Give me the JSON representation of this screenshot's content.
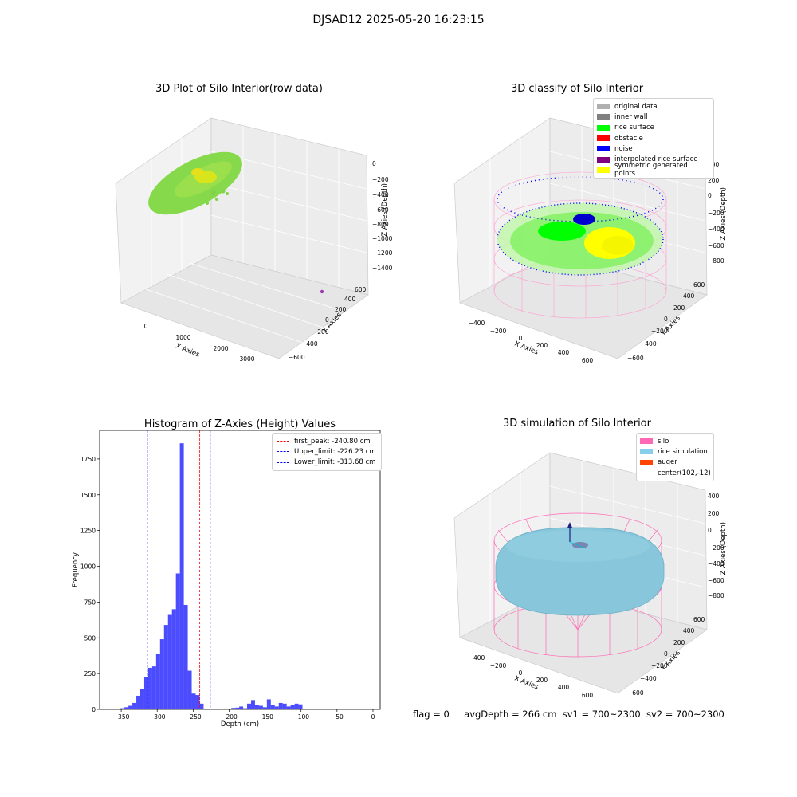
{
  "suptitle": "DJSAD12 2025-05-20 16:23:15",
  "panels": {
    "raw": {
      "title": "3D Plot of Silo Interior(row data)",
      "xlabel": "X Axies",
      "ylabel": "Y Axies",
      "zlabel": "Z Axies (Depth)",
      "xticks": [
        "0",
        "1000",
        "2000",
        "3000"
      ],
      "yticks": [
        "600",
        "400",
        "200",
        "0",
        "−200",
        "−400",
        "−600"
      ],
      "zticks": [
        "0",
        "−200",
        "−400",
        "−600",
        "−800",
        "−1000",
        "−1200",
        "−1400"
      ]
    },
    "classify": {
      "title": "3D classify of Silo Interior",
      "xlabel": "X Axies",
      "ylabel": "Y Axies",
      "zlabel": "Z Axies (Depth)",
      "xticks": [
        "−400",
        "−200",
        "0",
        "200",
        "400",
        "600"
      ],
      "yticks": [
        "600",
        "400",
        "200",
        "0",
        "−200",
        "−400",
        "−600"
      ],
      "zticks": [
        "400",
        "200",
        "0",
        "−200",
        "−400",
        "−600",
        "−800"
      ],
      "legend": [
        {
          "label": "original data",
          "color": "#b0b0b0"
        },
        {
          "label": "inner wall",
          "color": "#808080"
        },
        {
          "label": "rice surface",
          "color": "#00ff00"
        },
        {
          "label": "obstacle",
          "color": "#ff0000"
        },
        {
          "label": "noise",
          "color": "#0000ff"
        },
        {
          "label": "interpolated rice surface",
          "color": "#800080"
        },
        {
          "label": "symmetric generated points",
          "color": "#ffff00"
        }
      ]
    },
    "simulation": {
      "title": "3D simulation of Silo Interior",
      "xlabel": "X Axies",
      "ylabel": "Y Axies",
      "zlabel": "Z Axies (Depth)",
      "xticks": [
        "−400",
        "−200",
        "0",
        "200",
        "400",
        "600"
      ],
      "yticks": [
        "600",
        "400",
        "200",
        "0",
        "−200",
        "−400",
        "−600"
      ],
      "zticks": [
        "400",
        "200",
        "0",
        "−200",
        "−400",
        "−600",
        "−800"
      ],
      "legend": [
        {
          "label": "silo",
          "color": "#ff69b4"
        },
        {
          "label": "rice simulation",
          "color": "#87ceeb"
        },
        {
          "label": "auger",
          "color": "#ff4500"
        },
        {
          "label": "center(102,-12)",
          "color": ""
        }
      ]
    }
  },
  "chart_data": [
    {
      "type": "bar",
      "title": "Histogram of Z-Axies (Height) Values",
      "xlabel": "Depth (cm)",
      "ylabel": "Frequency",
      "xlim": [
        -380,
        10
      ],
      "ylim": [
        0,
        1950
      ],
      "xticks": [
        -350,
        -300,
        -250,
        -200,
        -150,
        -100,
        -50,
        0
      ],
      "yticks": [
        0,
        250,
        500,
        750,
        1000,
        1250,
        1500,
        1750
      ],
      "bin_width": 5.5,
      "bin_starts": [
        -362,
        -356.5,
        -351,
        -345.5,
        -340,
        -334.5,
        -329,
        -323.5,
        -318,
        -312.5,
        -307,
        -301.5,
        -296,
        -290.5,
        -285,
        -279.5,
        -274,
        -268.5,
        -263,
        -257.5,
        -252,
        -246.5,
        -241,
        -235.5,
        -230,
        -224.5,
        -219,
        -213.5,
        -208,
        -202.5,
        -197,
        -191.5,
        -186,
        -180.5,
        -175,
        -169.5,
        -164,
        -158.5,
        -153,
        -147.5,
        -142,
        -136.5,
        -131,
        -125.5,
        -120,
        -114.5,
        -109,
        -103.5,
        -98,
        -92.5,
        -87,
        -81.5,
        -76,
        -70.5,
        -65,
        -59.5,
        -54,
        -48.5,
        -43,
        -37.5,
        -32,
        -26.5,
        -21,
        -15.5,
        -10,
        -4.5
      ],
      "values": [
        3,
        5,
        8,
        15,
        25,
        45,
        95,
        145,
        225,
        290,
        300,
        390,
        490,
        590,
        660,
        700,
        950,
        1860,
        730,
        270,
        110,
        100,
        40,
        5,
        3,
        3,
        4,
        5,
        3,
        5,
        10,
        12,
        20,
        8,
        40,
        65,
        30,
        25,
        15,
        70,
        30,
        20,
        45,
        40,
        20,
        30,
        40,
        35,
        3,
        3,
        3,
        5,
        3,
        2,
        2,
        3,
        2,
        5,
        3,
        2,
        3,
        2,
        3,
        2,
        3,
        2
      ],
      "legend": {
        "placement": "upper right",
        "entries": [
          {
            "label": "first_peak: -240.80 cm",
            "value": -240.8,
            "color": "#ff0000"
          },
          {
            "label": "Upper_limit: -226.23 cm",
            "value": -226.23,
            "color": "#0000ff"
          },
          {
            "label": "Lower_limit: -313.68 cm",
            "value": -313.68,
            "color": "#0000ff"
          }
        ]
      },
      "bar_color": "#0000ff"
    }
  ],
  "status": {
    "flag": "flag = 0",
    "avg": "avgDepth = 266 cm",
    "sv1": "sv1 = 700~2300",
    "sv2": "sv2 = 700~2300"
  }
}
